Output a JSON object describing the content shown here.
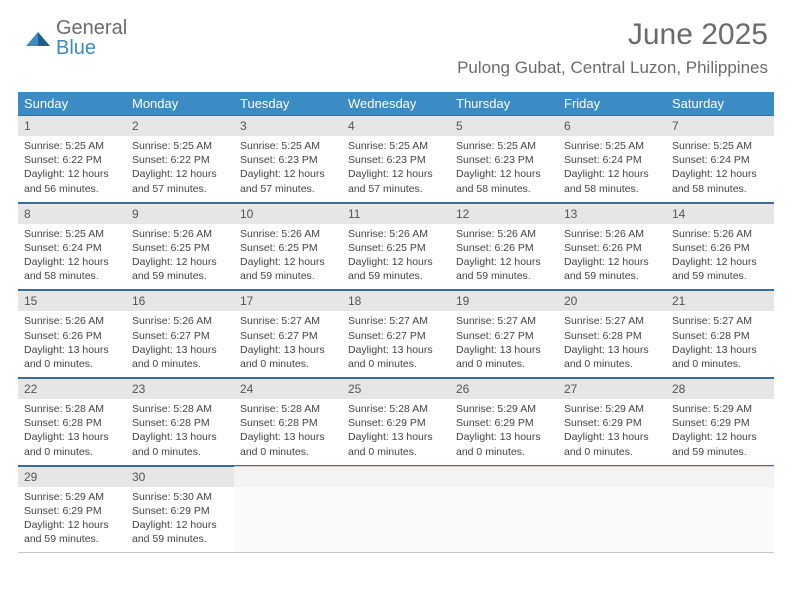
{
  "logo": {
    "word1": "General",
    "word2": "Blue"
  },
  "header": {
    "month_title": "June 2025",
    "location": "Pulong Gubat, Central Luzon, Philippines"
  },
  "colors": {
    "header_bg": "#3b8bc4",
    "daynum_bg": "#e6e6e6",
    "rule": "#3b6f99",
    "text_muted": "#6b6b6b",
    "body_text": "#444444"
  },
  "day_names": [
    "Sunday",
    "Monday",
    "Tuesday",
    "Wednesday",
    "Thursday",
    "Friday",
    "Saturday"
  ],
  "weeks": [
    [
      {
        "n": "1",
        "sunrise": "Sunrise: 5:25 AM",
        "sunset": "Sunset: 6:22 PM",
        "day": "Daylight: 12 hours and 56 minutes."
      },
      {
        "n": "2",
        "sunrise": "Sunrise: 5:25 AM",
        "sunset": "Sunset: 6:22 PM",
        "day": "Daylight: 12 hours and 57 minutes."
      },
      {
        "n": "3",
        "sunrise": "Sunrise: 5:25 AM",
        "sunset": "Sunset: 6:23 PM",
        "day": "Daylight: 12 hours and 57 minutes."
      },
      {
        "n": "4",
        "sunrise": "Sunrise: 5:25 AM",
        "sunset": "Sunset: 6:23 PM",
        "day": "Daylight: 12 hours and 57 minutes."
      },
      {
        "n": "5",
        "sunrise": "Sunrise: 5:25 AM",
        "sunset": "Sunset: 6:23 PM",
        "day": "Daylight: 12 hours and 58 minutes."
      },
      {
        "n": "6",
        "sunrise": "Sunrise: 5:25 AM",
        "sunset": "Sunset: 6:24 PM",
        "day": "Daylight: 12 hours and 58 minutes."
      },
      {
        "n": "7",
        "sunrise": "Sunrise: 5:25 AM",
        "sunset": "Sunset: 6:24 PM",
        "day": "Daylight: 12 hours and 58 minutes."
      }
    ],
    [
      {
        "n": "8",
        "sunrise": "Sunrise: 5:25 AM",
        "sunset": "Sunset: 6:24 PM",
        "day": "Daylight: 12 hours and 58 minutes."
      },
      {
        "n": "9",
        "sunrise": "Sunrise: 5:26 AM",
        "sunset": "Sunset: 6:25 PM",
        "day": "Daylight: 12 hours and 59 minutes."
      },
      {
        "n": "10",
        "sunrise": "Sunrise: 5:26 AM",
        "sunset": "Sunset: 6:25 PM",
        "day": "Daylight: 12 hours and 59 minutes."
      },
      {
        "n": "11",
        "sunrise": "Sunrise: 5:26 AM",
        "sunset": "Sunset: 6:25 PM",
        "day": "Daylight: 12 hours and 59 minutes."
      },
      {
        "n": "12",
        "sunrise": "Sunrise: 5:26 AM",
        "sunset": "Sunset: 6:26 PM",
        "day": "Daylight: 12 hours and 59 minutes."
      },
      {
        "n": "13",
        "sunrise": "Sunrise: 5:26 AM",
        "sunset": "Sunset: 6:26 PM",
        "day": "Daylight: 12 hours and 59 minutes."
      },
      {
        "n": "14",
        "sunrise": "Sunrise: 5:26 AM",
        "sunset": "Sunset: 6:26 PM",
        "day": "Daylight: 12 hours and 59 minutes."
      }
    ],
    [
      {
        "n": "15",
        "sunrise": "Sunrise: 5:26 AM",
        "sunset": "Sunset: 6:26 PM",
        "day": "Daylight: 13 hours and 0 minutes."
      },
      {
        "n": "16",
        "sunrise": "Sunrise: 5:26 AM",
        "sunset": "Sunset: 6:27 PM",
        "day": "Daylight: 13 hours and 0 minutes."
      },
      {
        "n": "17",
        "sunrise": "Sunrise: 5:27 AM",
        "sunset": "Sunset: 6:27 PM",
        "day": "Daylight: 13 hours and 0 minutes."
      },
      {
        "n": "18",
        "sunrise": "Sunrise: 5:27 AM",
        "sunset": "Sunset: 6:27 PM",
        "day": "Daylight: 13 hours and 0 minutes."
      },
      {
        "n": "19",
        "sunrise": "Sunrise: 5:27 AM",
        "sunset": "Sunset: 6:27 PM",
        "day": "Daylight: 13 hours and 0 minutes."
      },
      {
        "n": "20",
        "sunrise": "Sunrise: 5:27 AM",
        "sunset": "Sunset: 6:28 PM",
        "day": "Daylight: 13 hours and 0 minutes."
      },
      {
        "n": "21",
        "sunrise": "Sunrise: 5:27 AM",
        "sunset": "Sunset: 6:28 PM",
        "day": "Daylight: 13 hours and 0 minutes."
      }
    ],
    [
      {
        "n": "22",
        "sunrise": "Sunrise: 5:28 AM",
        "sunset": "Sunset: 6:28 PM",
        "day": "Daylight: 13 hours and 0 minutes."
      },
      {
        "n": "23",
        "sunrise": "Sunrise: 5:28 AM",
        "sunset": "Sunset: 6:28 PM",
        "day": "Daylight: 13 hours and 0 minutes."
      },
      {
        "n": "24",
        "sunrise": "Sunrise: 5:28 AM",
        "sunset": "Sunset: 6:28 PM",
        "day": "Daylight: 13 hours and 0 minutes."
      },
      {
        "n": "25",
        "sunrise": "Sunrise: 5:28 AM",
        "sunset": "Sunset: 6:29 PM",
        "day": "Daylight: 13 hours and 0 minutes."
      },
      {
        "n": "26",
        "sunrise": "Sunrise: 5:29 AM",
        "sunset": "Sunset: 6:29 PM",
        "day": "Daylight: 13 hours and 0 minutes."
      },
      {
        "n": "27",
        "sunrise": "Sunrise: 5:29 AM",
        "sunset": "Sunset: 6:29 PM",
        "day": "Daylight: 13 hours and 0 minutes."
      },
      {
        "n": "28",
        "sunrise": "Sunrise: 5:29 AM",
        "sunset": "Sunset: 6:29 PM",
        "day": "Daylight: 12 hours and 59 minutes."
      }
    ],
    [
      {
        "n": "29",
        "sunrise": "Sunrise: 5:29 AM",
        "sunset": "Sunset: 6:29 PM",
        "day": "Daylight: 12 hours and 59 minutes."
      },
      {
        "n": "30",
        "sunrise": "Sunrise: 5:30 AM",
        "sunset": "Sunset: 6:29 PM",
        "day": "Daylight: 12 hours and 59 minutes."
      },
      {
        "empty": true
      },
      {
        "empty": true
      },
      {
        "empty": true
      },
      {
        "empty": true
      },
      {
        "empty": true
      }
    ]
  ]
}
